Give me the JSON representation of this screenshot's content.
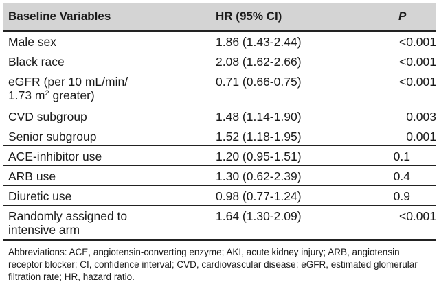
{
  "header": {
    "variable": "Baseline Variables",
    "hr": "HR (95% CI)",
    "p": "P"
  },
  "rows": [
    {
      "variable": "Male sex",
      "hr": "1.86 (1.43-2.44)",
      "p": "<0.001"
    },
    {
      "variable": "Black race",
      "hr": "2.08 (1.62-2.66)",
      "p": "<0.001"
    },
    {
      "variable_line1": "eGFR (per 10 mL/min/",
      "variable_line2_a": "1.73 m",
      "variable_line2_sup": "2",
      "variable_line2_b": " greater)",
      "hr": "0.71 (0.66-0.75)",
      "p": "<0.001"
    },
    {
      "variable": "CVD subgroup",
      "hr": "1.48 (1.14-1.90)",
      "p": "0.003"
    },
    {
      "variable": "Senior subgroup",
      "hr": "1.52 (1.18-1.95)",
      "p": "0.001"
    },
    {
      "variable": "ACE-inhibitor use",
      "hr": "1.20 (0.95-1.51)",
      "p": "0.1"
    },
    {
      "variable": "ARB use",
      "hr": "1.30 (0.62-2.39)",
      "p": "0.4"
    },
    {
      "variable": "Diuretic use",
      "hr": "0.98 (0.77-1.24)",
      "p": "0.9"
    },
    {
      "variable_line1": "Randomly assigned to",
      "variable_line2": "intensive arm",
      "hr": "1.64 (1.30-2.09)",
      "p": "<0.001"
    }
  ],
  "footnote": "Abbreviations: ACE, angiotensin-converting enzyme; AKI, acute kidney injury; ARB, angiotensin receptor blocker; CI, confidence interval; CVD, cardiovascular disease; eGFR, estimated glomerular filtration rate; HR, hazard ratio."
}
